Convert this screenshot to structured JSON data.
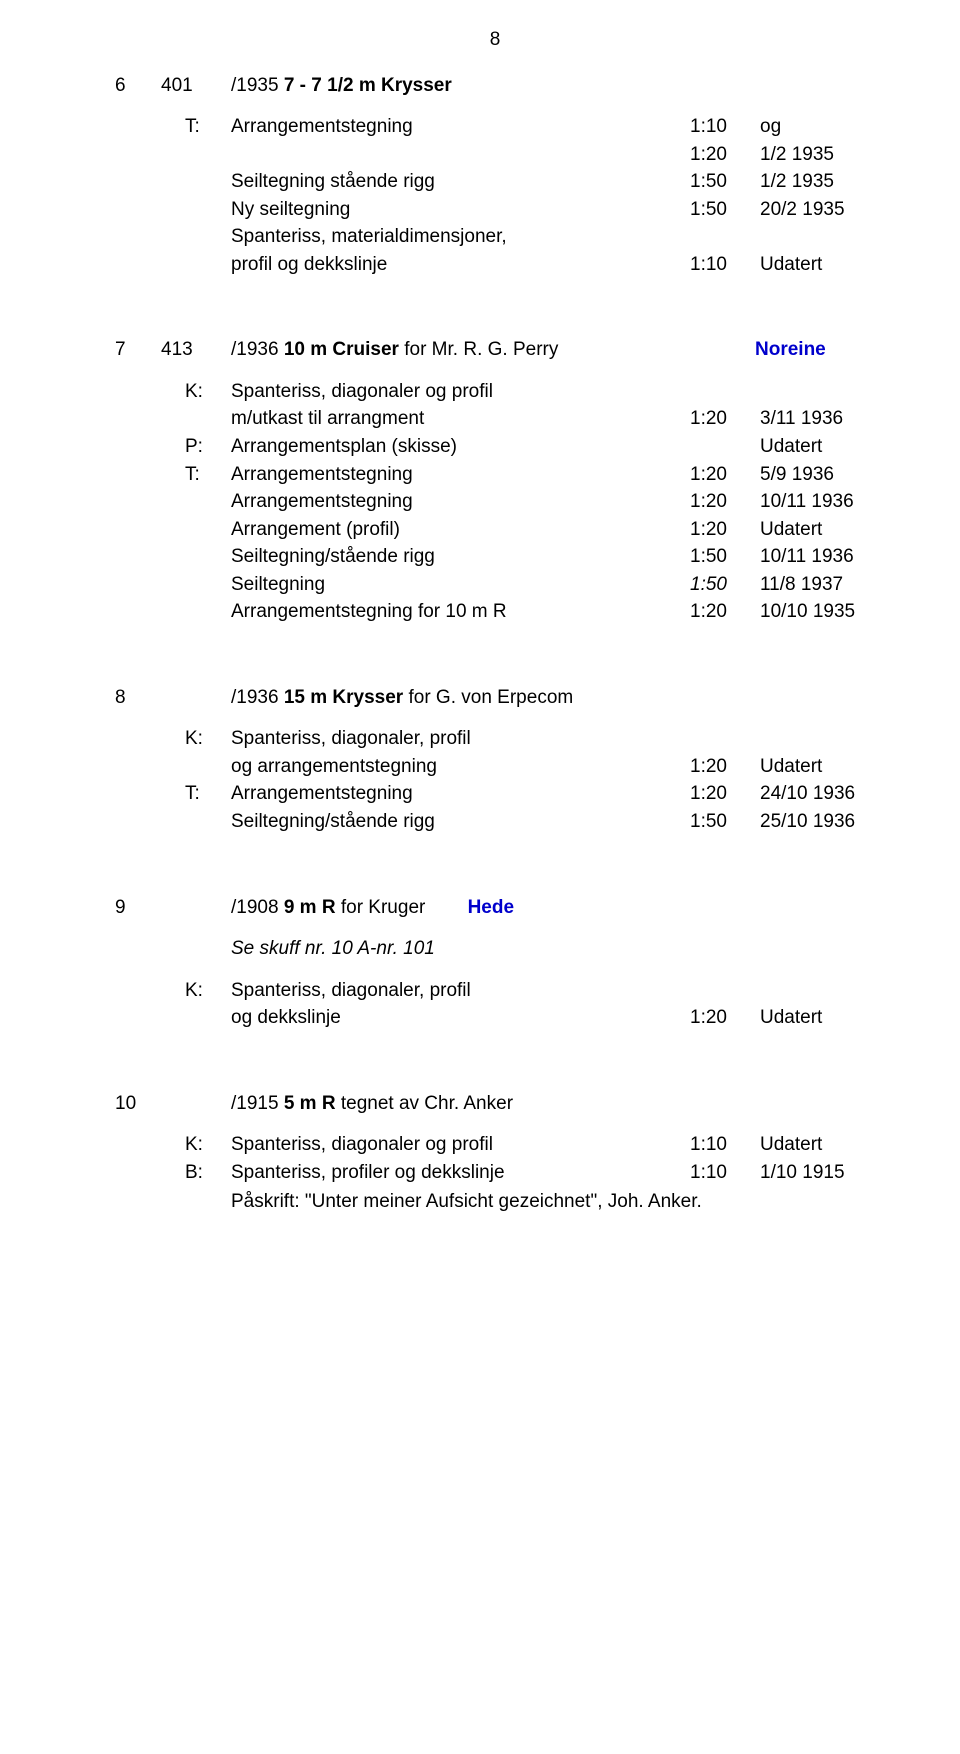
{
  "pageNumber": "8",
  "entries": [
    {
      "headCols": {
        "a": "6",
        "b": "401",
        "cPrefix": "/1935 ",
        "cBold": "7 - 7 1/2 m Krysser",
        "cSuffix": "",
        "d": ""
      },
      "rows": [
        {
          "mark": "T:",
          "desc": "Arrangementstegning",
          "scale": "1:10",
          "date": "og"
        },
        {
          "mark": "",
          "desc": "",
          "scale": "1:20",
          "date": "1/2 1935"
        },
        {
          "mark": "",
          "desc": "Seiltegning stående rigg",
          "scale": "1:50",
          "date": "1/2 1935"
        },
        {
          "mark": "",
          "desc": "Ny seiltegning",
          "scale": "1:50",
          "date": "20/2 1935"
        },
        {
          "mark": "",
          "desc": "Spanteriss, materialdimensjoner,",
          "scale": "",
          "date": ""
        },
        {
          "mark": "",
          "desc": "profil og dekkslinje",
          "scale": "1:10",
          "date": "Udatert"
        }
      ]
    },
    {
      "headCols": {
        "a": "7",
        "b": "413",
        "cPrefix": "/1936 ",
        "cBold": "10 m Cruiser",
        "cSuffix": " for Mr. R. G. Perry",
        "d": "Noreine"
      },
      "rows": [
        {
          "mark": "K:",
          "desc": "Spanteriss, diagonaler og profil",
          "scale": "",
          "date": ""
        },
        {
          "mark": "",
          "desc": "m/utkast til arrangment",
          "scale": "1:20",
          "date": "3/11 1936"
        },
        {
          "mark": "P:",
          "desc": "Arrangementsplan (skisse)",
          "scale": "",
          "date": "Udatert"
        },
        {
          "mark": "T:",
          "desc": "Arrangementstegning",
          "scale": "1:20",
          "date": "5/9 1936"
        },
        {
          "mark": "",
          "desc": "Arrangementstegning",
          "scale": "1:20",
          "date": "10/11 1936"
        },
        {
          "mark": "",
          "desc": "Arrangement (profil)",
          "scale": "1:20",
          "date": "Udatert"
        },
        {
          "mark": "",
          "desc": "Seiltegning/stående rigg",
          "scale": "1:50",
          "date": "10/11 1936"
        },
        {
          "mark": "",
          "desc": "Seiltegning",
          "scale": "1:50",
          "date": "11/8 1937",
          "scaleItalic": true
        },
        {
          "mark": "",
          "desc": "Arrangementstegning for 10 m R",
          "scale": "1:20",
          "date": "10/10 1935"
        }
      ]
    },
    {
      "headCols": {
        "a": "8",
        "b": "",
        "cPrefix": "/1936 ",
        "cBold": "15 m Krysser",
        "cSuffix": " for G. von Erpecom",
        "d": ""
      },
      "rows": [
        {
          "mark": "K:",
          "desc": "Spanteriss, diagonaler, profil",
          "scale": "",
          "date": ""
        },
        {
          "mark": "",
          "desc": "og arrangementstegning",
          "scale": "1:20",
          "date": "Udatert"
        },
        {
          "mark": "T:",
          "desc": "Arrangementstegning",
          "scale": "1:20",
          "date": "24/10 1936"
        },
        {
          "mark": "",
          "desc": "Seiltegning/stående rigg",
          "scale": "1:50",
          "date": "25/10 1936"
        }
      ]
    },
    {
      "headCols": {
        "a": "9",
        "b": "",
        "cPrefix": "/1908 ",
        "cBold": "9 m R",
        "cSuffix": " for Kruger",
        "cSuffix2Blue": "Hede",
        "d": ""
      },
      "subItalic": "Se skuff nr. 10 A-nr. 101",
      "rows": [
        {
          "mark": "K:",
          "desc": "Spanteriss, diagonaler, profil",
          "scale": "",
          "date": ""
        },
        {
          "mark": "",
          "desc": "og dekkslinje",
          "scale": "1:20",
          "date": "Udatert"
        }
      ]
    },
    {
      "headCols": {
        "a": "10",
        "b": "",
        "cPrefix": "/1915 ",
        "cBold": "5 m R",
        "cSuffix": " tegnet av Chr. Anker",
        "d": ""
      },
      "rows": [
        {
          "mark": "K:",
          "desc": "Spanteriss, diagonaler og profil",
          "scale": "1:10",
          "date": "Udatert"
        },
        {
          "mark": "B:",
          "desc": "Spanteriss, profiler og dekkslinje",
          "scale": "1:10",
          "date": "1/10 1915"
        }
      ],
      "note": "Påskrift: \"Unter meiner Aufsicht gezeichnet\", Joh. Anker."
    }
  ]
}
